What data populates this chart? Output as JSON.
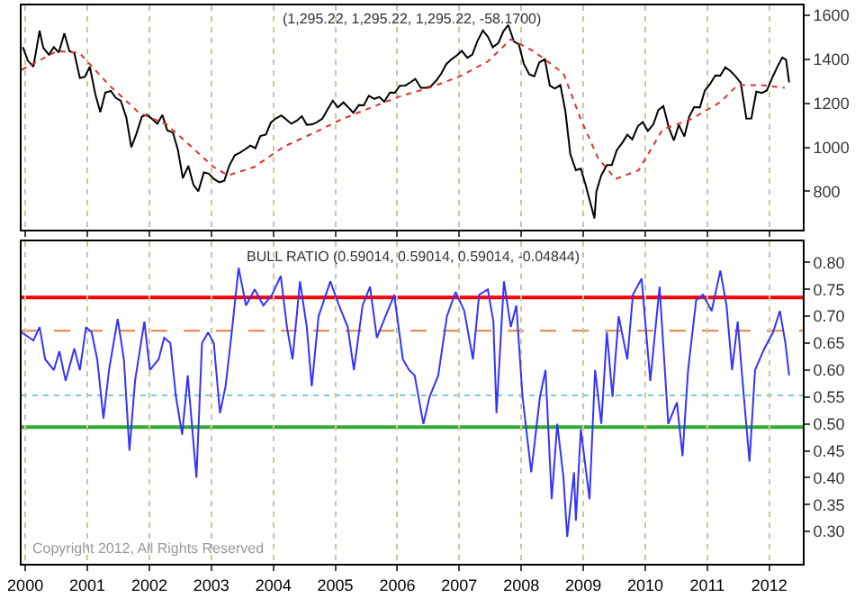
{
  "chart_data": [
    {
      "type": "line",
      "title": "(1,295.22, 1,295.22, 1,295.22, -58.1700)",
      "xlim": [
        1999.94,
        2012.54
      ],
      "ylim": [
        625,
        1645
      ],
      "xticks": [
        2000,
        2001,
        2002,
        2003,
        2004,
        2005,
        2006,
        2007,
        2008,
        2009,
        2010,
        2011,
        2012
      ],
      "yticks": [
        800,
        1000,
        1200,
        1400,
        1600
      ],
      "grid": "x",
      "tick_labels": "y",
      "series": [
        {
          "color": "#000000",
          "line_style": "solid",
          "x": [
            1999.96,
            2000.04,
            2000.13,
            2000.23,
            2000.29,
            2000.38,
            2000.46,
            2000.54,
            2000.63,
            2000.71,
            2000.79,
            2000.88,
            2000.96,
            2001.04,
            2001.13,
            2001.21,
            2001.29,
            2001.38,
            2001.46,
            2001.54,
            2001.63,
            2001.71,
            2001.79,
            2001.88,
            2001.96,
            2002.04,
            2002.13,
            2002.21,
            2002.29,
            2002.38,
            2002.46,
            2002.54,
            2002.63,
            2002.71,
            2002.79,
            2002.88,
            2002.96,
            2003.04,
            2003.13,
            2003.21,
            2003.29,
            2003.38,
            2003.46,
            2003.54,
            2003.63,
            2003.71,
            2003.79,
            2003.88,
            2003.96,
            2004.04,
            2004.13,
            2004.21,
            2004.29,
            2004.38,
            2004.46,
            2004.54,
            2004.63,
            2004.71,
            2004.79,
            2004.88,
            2004.96,
            2005.04,
            2005.13,
            2005.21,
            2005.29,
            2005.38,
            2005.46,
            2005.54,
            2005.63,
            2005.71,
            2005.79,
            2005.88,
            2005.96,
            2006.04,
            2006.13,
            2006.21,
            2006.29,
            2006.38,
            2006.46,
            2006.54,
            2006.63,
            2006.71,
            2006.79,
            2006.88,
            2006.96,
            2007.04,
            2007.13,
            2007.21,
            2007.29,
            2007.38,
            2007.46,
            2007.54,
            2007.63,
            2007.71,
            2007.79,
            2007.88,
            2007.96,
            2008.04,
            2008.13,
            2008.21,
            2008.29,
            2008.38,
            2008.46,
            2008.54,
            2008.63,
            2008.71,
            2008.79,
            2008.88,
            2008.96,
            2009.04,
            2009.18,
            2009.21,
            2009.29,
            2009.38,
            2009.46,
            2009.54,
            2009.63,
            2009.71,
            2009.79,
            2009.88,
            2009.96,
            2010.04,
            2010.13,
            2010.21,
            2010.29,
            2010.38,
            2010.46,
            2010.54,
            2010.63,
            2010.71,
            2010.79,
            2010.88,
            2010.96,
            2011.04,
            2011.13,
            2011.21,
            2011.29,
            2011.38,
            2011.46,
            2011.54,
            2011.63,
            2011.71,
            2011.79,
            2011.88,
            2011.96,
            2012.04,
            2012.13,
            2012.21,
            2012.27,
            2012.32
          ],
          "values": [
            1455,
            1394,
            1366,
            1530,
            1452,
            1421,
            1455,
            1431,
            1518,
            1437,
            1429,
            1315,
            1320,
            1366,
            1240,
            1160,
            1249,
            1256,
            1224,
            1211,
            1134,
            1000,
            1060,
            1139,
            1148,
            1130,
            1107,
            1147,
            1077,
            1067,
            990,
            860,
            916,
            830,
            800,
            886,
            880,
            856,
            841,
            848,
            917,
            964,
            975,
            990,
            1008,
            996,
            1051,
            1058,
            1112,
            1131,
            1145,
            1126,
            1107,
            1121,
            1141,
            1102,
            1104,
            1115,
            1130,
            1174,
            1212,
            1181,
            1204,
            1181,
            1157,
            1192,
            1191,
            1234,
            1220,
            1229,
            1207,
            1249,
            1248,
            1280,
            1281,
            1295,
            1311,
            1270,
            1270,
            1277,
            1304,
            1336,
            1378,
            1401,
            1418,
            1438,
            1407,
            1421,
            1482,
            1531,
            1503,
            1455,
            1474,
            1527,
            1556,
            1481,
            1468,
            1379,
            1331,
            1323,
            1386,
            1400,
            1280,
            1267,
            1283,
            1165,
            969,
            896,
            903,
            826,
            677,
            798,
            873,
            919,
            919,
            987,
            1021,
            1057,
            1036,
            1096,
            1115,
            1074,
            1104,
            1169,
            1187,
            1089,
            1031,
            1102,
            1049,
            1141,
            1183,
            1181,
            1258,
            1286,
            1327,
            1326,
            1364,
            1345,
            1321,
            1292,
            1130,
            1131,
            1253,
            1247,
            1258,
            1312,
            1366,
            1408,
            1398,
            1295.22
          ]
        },
        {
          "color": "#e03030",
          "line_style": "dotted",
          "x": [
            1999.94,
            2000.51,
            2000.87,
            2001.35,
            2001.83,
            2002.28,
            2003.04,
            2003.27,
            2003.69,
            2004.17,
            2004.65,
            2005.1,
            2005.58,
            2006.06,
            2006.51,
            2006.99,
            2007.46,
            2007.83,
            2008.2,
            2008.68,
            2008.96,
            2009.24,
            2009.52,
            2009.89,
            2010.28,
            2010.73,
            2011.21,
            2011.49,
            2011.86,
            2012.25
          ],
          "values": [
            1352,
            1437,
            1430,
            1283,
            1158,
            1104,
            910,
            872,
            910,
            1003,
            1065,
            1127,
            1181,
            1233,
            1270,
            1320,
            1390,
            1491,
            1437,
            1336,
            1127,
            950,
            856,
            895,
            1081,
            1127,
            1205,
            1283,
            1283,
            1270
          ]
        }
      ]
    },
    {
      "type": "line",
      "title": "BULL RATIO (0.59014, 0.59014, 0.59014, -0.04844)",
      "annotations": [
        "Copyright 2012, All Rights Reserved"
      ],
      "xlim": [
        1999.94,
        2012.54
      ],
      "ylim": [
        0.24,
        0.84
      ],
      "xticks": [
        2000,
        2001,
        2002,
        2003,
        2004,
        2005,
        2006,
        2007,
        2008,
        2009,
        2010,
        2011,
        2012
      ],
      "yticks": [
        {
          "value": 0.3,
          "label": "0.30"
        },
        {
          "value": 0.35,
          "label": "0.35"
        },
        {
          "value": 0.4,
          "label": "0.40"
        },
        {
          "value": 0.45,
          "label": "0.45"
        },
        {
          "value": 0.5,
          "label": "0.50"
        },
        {
          "value": 0.55,
          "label": "0.55"
        },
        {
          "value": 0.6,
          "label": "0.60"
        },
        {
          "value": 0.65,
          "label": "0.65"
        },
        {
          "value": 0.7,
          "label": "0.70"
        },
        {
          "value": 0.75,
          "label": "0.75"
        },
        {
          "value": 0.8,
          "label": "0.80"
        }
      ],
      "grid": "x",
      "ref_lines": [
        {
          "axis": "y",
          "value": 0.735,
          "color": "#ff0000",
          "line_style": "solid"
        },
        {
          "axis": "y",
          "value": 0.673,
          "color": "#e08040",
          "line_style": "dashed"
        },
        {
          "axis": "y",
          "value": 0.553,
          "color": "#80c8e0",
          "line_style": "dotted"
        },
        {
          "axis": "y",
          "value": 0.494,
          "color": "#33aa33",
          "line_style": "solid"
        }
      ],
      "series": [
        {
          "color": "#3333ff",
          "line_style": "solid",
          "x": [
            1999.94,
            2000.13,
            2000.23,
            2000.32,
            2000.46,
            2000.55,
            2000.65,
            2000.79,
            2000.88,
            2000.98,
            2001.07,
            2001.16,
            2001.26,
            2001.35,
            2001.49,
            2001.59,
            2001.68,
            2001.77,
            2001.92,
            2002.01,
            2002.15,
            2002.24,
            2002.34,
            2002.43,
            2002.53,
            2002.62,
            2002.76,
            2002.85,
            2002.95,
            2003.04,
            2003.14,
            2003.23,
            2003.32,
            2003.44,
            2003.56,
            2003.7,
            2003.84,
            2003.98,
            2004.12,
            2004.22,
            2004.31,
            2004.43,
            2004.54,
            2004.62,
            2004.73,
            2004.92,
            2005.06,
            2005.2,
            2005.3,
            2005.44,
            2005.56,
            2005.67,
            2005.81,
            2005.95,
            2006.09,
            2006.19,
            2006.28,
            2006.42,
            2006.52,
            2006.66,
            2006.8,
            2006.94,
            2007.08,
            2007.22,
            2007.32,
            2007.46,
            2007.55,
            2007.6,
            2007.72,
            2007.83,
            2007.92,
            2008.02,
            2008.16,
            2008.3,
            2008.39,
            2008.49,
            2008.58,
            2008.68,
            2008.74,
            2008.85,
            2008.88,
            2008.96,
            2009.1,
            2009.19,
            2009.29,
            2009.38,
            2009.47,
            2009.57,
            2009.71,
            2009.8,
            2009.94,
            2010.08,
            2010.23,
            2010.37,
            2010.51,
            2010.6,
            2010.69,
            2010.82,
            2010.93,
            2011.07,
            2011.21,
            2011.31,
            2011.4,
            2011.49,
            2011.59,
            2011.68,
            2011.77,
            2011.92,
            2012.06,
            2012.17,
            2012.26,
            2012.32
          ],
          "values": [
            0.67,
            0.655,
            0.68,
            0.62,
            0.6,
            0.635,
            0.58,
            0.64,
            0.6,
            0.68,
            0.67,
            0.62,
            0.51,
            0.6,
            0.695,
            0.62,
            0.45,
            0.58,
            0.69,
            0.6,
            0.62,
            0.66,
            0.65,
            0.55,
            0.48,
            0.59,
            0.4,
            0.65,
            0.67,
            0.65,
            0.52,
            0.57,
            0.66,
            0.79,
            0.72,
            0.75,
            0.72,
            0.74,
            0.775,
            0.68,
            0.62,
            0.765,
            0.68,
            0.57,
            0.7,
            0.765,
            0.72,
            0.68,
            0.6,
            0.72,
            0.755,
            0.66,
            0.7,
            0.74,
            0.62,
            0.6,
            0.59,
            0.5,
            0.55,
            0.59,
            0.7,
            0.745,
            0.71,
            0.62,
            0.74,
            0.75,
            0.69,
            0.52,
            0.765,
            0.68,
            0.72,
            0.55,
            0.41,
            0.55,
            0.6,
            0.36,
            0.5,
            0.4,
            0.29,
            0.41,
            0.32,
            0.49,
            0.36,
            0.6,
            0.5,
            0.67,
            0.55,
            0.7,
            0.62,
            0.74,
            0.77,
            0.58,
            0.755,
            0.5,
            0.54,
            0.44,
            0.6,
            0.73,
            0.74,
            0.71,
            0.785,
            0.72,
            0.6,
            0.69,
            0.55,
            0.43,
            0.6,
            0.64,
            0.67,
            0.71,
            0.65,
            0.59014
          ]
        }
      ]
    }
  ]
}
